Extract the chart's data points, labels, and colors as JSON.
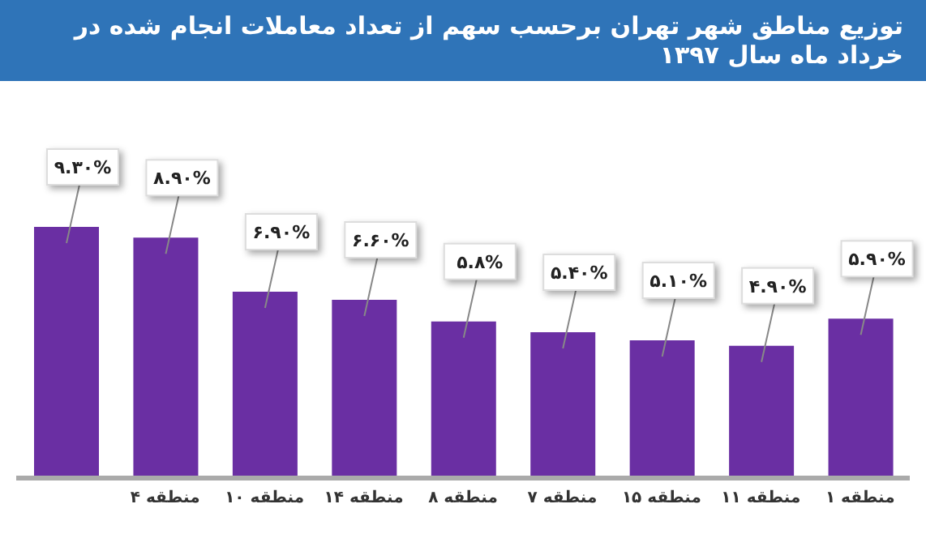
{
  "chart_data": {
    "type": "bar",
    "title": "توزیع مناطق شهر تهران برحسب سهم از تعداد معاملات انجام شده در خرداد ماه سال ۱۳۹۷",
    "categories": [
      null,
      "منطقه ۴",
      "منطقه ۱۰",
      "منطقه ۱۴",
      "منطقه ۸",
      "منطقه ۷",
      "منطقه ۱۵",
      "منطقه ۱۱",
      "منطقه ۱"
    ],
    "values": [
      9.3,
      8.9,
      6.9,
      6.6,
      5.8,
      5.4,
      5.1,
      4.9,
      5.9
    ],
    "value_labels": [
      "۹.۳۰%",
      "۸.۹۰%",
      "۶.۹۰%",
      "۶.۶۰%",
      "۵.۸%",
      "۵.۴۰%",
      "۵.۱۰%",
      "۴.۹۰%",
      "۵.۹۰%"
    ],
    "color": "#6a2fa3"
  }
}
